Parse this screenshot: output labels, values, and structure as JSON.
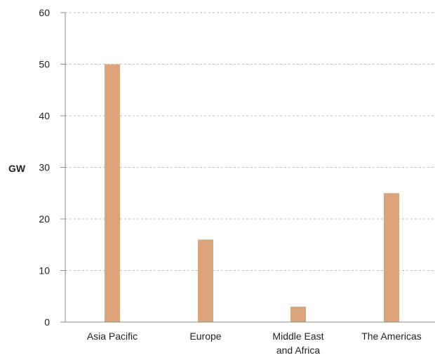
{
  "chart_data": {
    "type": "bar",
    "title": "",
    "xlabel": "",
    "ylabel": "GW",
    "categories": [
      "Asia Pacific",
      "Europe",
      "Middle East and Africa",
      "The Americas"
    ],
    "category_lines": [
      [
        "Asia Pacific"
      ],
      [
        "Europe"
      ],
      [
        "Middle East",
        "and Africa"
      ],
      [
        "The Americas"
      ]
    ],
    "values": [
      50,
      16,
      3,
      25
    ],
    "ylim": [
      0,
      60
    ],
    "yticks": [
      0,
      10,
      20,
      30,
      40,
      50,
      60
    ],
    "grid": true,
    "legend": "none",
    "colors": {
      "bar": "#dba47a",
      "grid": "#bdbdbd",
      "axis": "#8c8c8c"
    }
  }
}
